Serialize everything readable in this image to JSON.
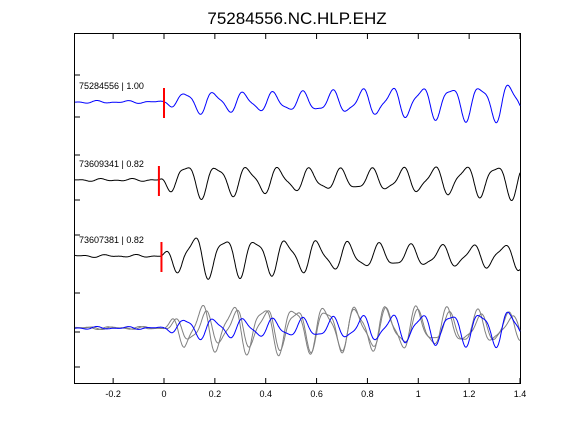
{
  "chart_data": {
    "type": "line",
    "title": "75284556.NC.HLP.EHZ",
    "xlabel": "",
    "ylabel": "",
    "xlim": [
      -0.35,
      1.4
    ],
    "x_ticks": [
      -0.2,
      0,
      0.2,
      0.4,
      0.6,
      0.8,
      1,
      1.2,
      1.4
    ],
    "x_tick_labels": [
      "-0.2",
      "0",
      "0.2",
      "0.4",
      "0.6",
      "0.8",
      "1",
      "1.2",
      "1.4"
    ],
    "grid": false,
    "pick_marker_color": "#ff0000",
    "series": [
      {
        "label": "75284556 | 1.00",
        "color": "#0000ff",
        "pick_time": 0.0,
        "row": 0,
        "freq": 8.6,
        "amp": 0.9,
        "seed": 1
      },
      {
        "label": "73609341 | 0.82",
        "color": "#000000",
        "pick_time": -0.02,
        "row": 1,
        "freq": 8.2,
        "amp": 1.0,
        "seed": 2
      },
      {
        "label": "73607381 | 0.82",
        "color": "#000000",
        "pick_time": -0.01,
        "row": 2,
        "freq": 8.2,
        "amp": 1.0,
        "seed": 3
      }
    ],
    "overlay": {
      "row": 3,
      "traces": [
        {
          "color": "#808080",
          "seed": 4,
          "freq": 8.2,
          "amp": 1.15
        },
        {
          "color": "#808080",
          "seed": 5,
          "freq": 8.4,
          "amp": 1.05
        },
        {
          "color": "#0000ff",
          "seed": 1,
          "freq": 8.6,
          "amp": 0.85
        }
      ]
    }
  }
}
